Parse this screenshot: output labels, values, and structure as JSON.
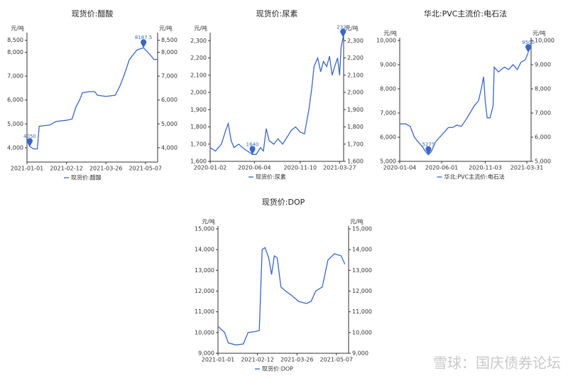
{
  "chart_data": [
    {
      "type": "line",
      "title": "现货价:醋酸",
      "y_unit": "元/吨",
      "xlim": [
        "2021-01-01",
        "2021-05-20"
      ],
      "xticks": [
        "2021-01-01",
        "2021-02-12",
        "2021-03-26",
        "2021-05-07"
      ],
      "ylim": [
        3400,
        8700
      ],
      "yticks": [
        {
          "value": 4000,
          "label": "4,000"
        },
        {
          "value": 5000,
          "label": "5,000"
        },
        {
          "value": 6000,
          "label": "6,000"
        },
        {
          "value": 7000,
          "label": "7,000"
        },
        {
          "value": 8000,
          "label": "8,000"
        },
        {
          "value": 8500,
          "label": "8,500"
        }
      ],
      "x": [
        "2021-01-01",
        "2021-01-04",
        "2021-01-08",
        "2021-01-12",
        "2021-01-14",
        "2021-01-25",
        "2021-02-01",
        "2021-02-12",
        "2021-02-18",
        "2021-02-22",
        "2021-02-26",
        "2021-03-01",
        "2021-03-08",
        "2021-03-14",
        "2021-03-17",
        "2021-03-26",
        "2021-04-05",
        "2021-04-10",
        "2021-04-14",
        "2021-04-20",
        "2021-04-28",
        "2021-05-05",
        "2021-05-12",
        "2021-05-16",
        "2021-05-20"
      ],
      "series": [
        {
          "name": "现货价:醋酸",
          "color": "#3a66c4",
          "values": [
            4300,
            4050,
            3950,
            3950,
            4900,
            4950,
            5100,
            5150,
            5200,
            5700,
            6000,
            6300,
            6350,
            6350,
            6200,
            6150,
            6200,
            6600,
            7000,
            7700,
            8100,
            8187.5,
            7900,
            7700,
            7700
          ]
        }
      ],
      "markers": [
        {
          "x": "2021-01-04",
          "value": 4050
        },
        {
          "x": "2021-05-05",
          "value": 8187.5
        }
      ]
    },
    {
      "type": "line",
      "title": "现货价:尿素",
      "y_unit": "元/吨",
      "xlim": [
        "2020-01-02",
        "2021-04-10"
      ],
      "xticks": [
        "2020-01-02",
        "2020-06-04",
        "2020-11-10",
        "2021-03-27"
      ],
      "ylim": [
        1600,
        2330
      ],
      "yticks": [
        {
          "value": 1600,
          "label": "1,600"
        },
        {
          "value": 1700,
          "label": "1,700"
        },
        {
          "value": 1800,
          "label": "1,800"
        },
        {
          "value": 1900,
          "label": "1,900"
        },
        {
          "value": 2000,
          "label": "2,000"
        },
        {
          "value": 2100,
          "label": "2,100"
        },
        {
          "value": 2200,
          "label": "2,200"
        },
        {
          "value": 2300,
          "label": "2,300"
        }
      ],
      "x": [
        "2020-01-02",
        "2020-01-20",
        "2020-02-10",
        "2020-02-25",
        "2020-03-05",
        "2020-03-15",
        "2020-03-25",
        "2020-04-10",
        "2020-05-01",
        "2020-05-20",
        "2020-05-28",
        "2020-06-10",
        "2020-06-25",
        "2020-07-05",
        "2020-07-15",
        "2020-07-25",
        "2020-08-10",
        "2020-08-25",
        "2020-09-10",
        "2020-09-25",
        "2020-10-10",
        "2020-10-25",
        "2020-11-10",
        "2020-11-25",
        "2020-12-10",
        "2020-12-20",
        "2020-12-28",
        "2021-01-10",
        "2021-01-20",
        "2021-01-30",
        "2021-02-10",
        "2021-02-20",
        "2021-03-01",
        "2021-03-10",
        "2021-03-20",
        "2021-03-27",
        "2021-04-01",
        "2021-04-08"
      ],
      "series": [
        {
          "name": "现货价:尿素",
          "color": "#3a66c4",
          "values": [
            1680,
            1660,
            1700,
            1780,
            1820,
            1720,
            1680,
            1700,
            1670,
            1650,
            1640,
            1640,
            1680,
            1660,
            1790,
            1720,
            1700,
            1730,
            1700,
            1740,
            1780,
            1800,
            1770,
            1760,
            1900,
            2020,
            2150,
            2200,
            2120,
            2180,
            2150,
            2210,
            2100,
            2150,
            2200,
            2100,
            2260,
            2320
          ]
        }
      ],
      "markers": [
        {
          "x": "2020-05-28",
          "value": 1640
        },
        {
          "x": "2021-04-08",
          "value": 2320
        }
      ]
    },
    {
      "type": "line",
      "title": "华北:PVC主流价:电石法",
      "y_unit": "元/吨",
      "xlim": [
        "2020-01-04",
        "2021-04-15"
      ],
      "xticks": [
        "2020-01-04",
        "2020-06-01",
        "2020-11-03",
        "2021-03-31"
      ],
      "ylim": [
        5000,
        10000
      ],
      "yticks": [
        {
          "value": 5000,
          "label": "5,000"
        },
        {
          "value": 6000,
          "label": "6,000"
        },
        {
          "value": 7000,
          "label": "7,000"
        },
        {
          "value": 8000,
          "label": "8,000"
        },
        {
          "value": 9000,
          "label": "9,000"
        },
        {
          "value": 10000,
          "label": "10,000"
        }
      ],
      "x": [
        "2020-01-04",
        "2020-01-25",
        "2020-02-10",
        "2020-02-25",
        "2020-03-10",
        "2020-03-25",
        "2020-04-05",
        "2020-04-15",
        "2020-04-25",
        "2020-05-10",
        "2020-05-25",
        "2020-06-10",
        "2020-06-25",
        "2020-07-10",
        "2020-07-25",
        "2020-08-10",
        "2020-08-25",
        "2020-09-10",
        "2020-09-25",
        "2020-10-10",
        "2020-10-20",
        "2020-10-28",
        "2020-11-03",
        "2020-11-10",
        "2020-11-20",
        "2020-12-01",
        "2020-12-05",
        "2020-12-20",
        "2021-01-10",
        "2021-01-25",
        "2021-02-10",
        "2021-02-25",
        "2021-03-10",
        "2021-03-25",
        "2021-04-05"
      ],
      "series": [
        {
          "name": "华北:PVC主流价:电石法",
          "color": "#3a66c4",
          "values": [
            6550,
            6550,
            6450,
            6000,
            5800,
            5600,
            5400,
            5275,
            5400,
            5800,
            6000,
            6200,
            6400,
            6400,
            6500,
            6450,
            6700,
            7000,
            7300,
            7500,
            8000,
            8500,
            7500,
            6800,
            6800,
            7300,
            8900,
            8700,
            8900,
            8800,
            9000,
            8800,
            9100,
            9200,
            9500
          ]
        }
      ],
      "markers": [
        {
          "x": "2020-04-15",
          "value": 5275
        },
        {
          "x": "2021-04-05",
          "value": 9500
        }
      ]
    },
    {
      "type": "line",
      "title": "现货价:DOP",
      "y_unit": "元/吨",
      "xlim": [
        "2021-01-01",
        "2021-05-20"
      ],
      "xticks": [
        "2021-01-01",
        "2021-02-12",
        "2021-03-26",
        "2021-05-07"
      ],
      "ylim": [
        9000,
        15000
      ],
      "yticks": [
        {
          "value": 9000,
          "label": "9,000"
        },
        {
          "value": 10000,
          "label": "10,000"
        },
        {
          "value": 11000,
          "label": "11,000"
        },
        {
          "value": 12000,
          "label": "12,000"
        },
        {
          "value": 13000,
          "label": "13,000"
        },
        {
          "value": 14000,
          "label": "14,000"
        },
        {
          "value": 15000,
          "label": "15,000"
        }
      ],
      "x": [
        "2021-01-01",
        "2021-01-08",
        "2021-01-12",
        "2021-01-20",
        "2021-01-28",
        "2021-02-02",
        "2021-02-10",
        "2021-02-14",
        "2021-02-17",
        "2021-02-20",
        "2021-02-24",
        "2021-02-27",
        "2021-03-02",
        "2021-03-05",
        "2021-03-09",
        "2021-03-14",
        "2021-03-20",
        "2021-03-28",
        "2021-04-05",
        "2021-04-10",
        "2021-04-15",
        "2021-04-22",
        "2021-04-28",
        "2021-05-05",
        "2021-05-12",
        "2021-05-16"
      ],
      "series": [
        {
          "name": "现货价:DOP",
          "color": "#3a66c4",
          "values": [
            10300,
            10000,
            9500,
            9400,
            9450,
            10000,
            10050,
            10100,
            14000,
            14100,
            13600,
            12800,
            13700,
            13600,
            12200,
            12000,
            11800,
            11500,
            11400,
            11500,
            12000,
            12200,
            13500,
            13800,
            13700,
            13300
          ]
        }
      ],
      "markers": []
    }
  ],
  "watermark": "雪球：国庆债券论坛"
}
